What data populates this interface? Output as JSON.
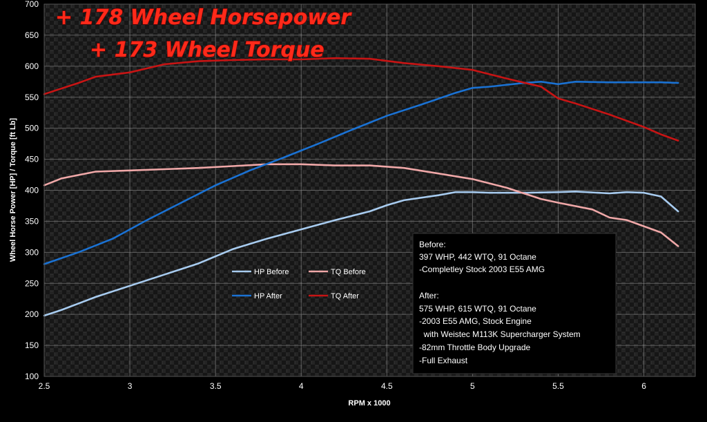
{
  "chart_data": {
    "type": "line",
    "title": "",
    "headline": [
      "+ 178 Wheel Horsepower",
      "+ 173 Wheel Torque"
    ],
    "xlabel": "RPM x 1000",
    "ylabel": "Wheel Horse Power [HP] / Torque [ft Lb]",
    "xlim": [
      2.5,
      6.3
    ],
    "ylim": [
      100,
      700
    ],
    "x_ticks": [
      "2.5",
      "3",
      "3.5",
      "4",
      "4.5",
      "5",
      "5.5",
      "6"
    ],
    "y_ticks": [
      "100",
      "150",
      "200",
      "250",
      "300",
      "350",
      "400",
      "450",
      "500",
      "550",
      "600",
      "650",
      "700"
    ],
    "grid": true,
    "legend_position": "center-left",
    "series": [
      {
        "name": "HP Before",
        "color": "#a8ccf0",
        "points": [
          [
            2.5,
            198
          ],
          [
            2.6,
            207
          ],
          [
            2.8,
            228
          ],
          [
            3.0,
            246
          ],
          [
            3.2,
            264
          ],
          [
            3.4,
            282
          ],
          [
            3.6,
            305
          ],
          [
            3.8,
            322
          ],
          [
            4.0,
            337
          ],
          [
            4.2,
            352
          ],
          [
            4.4,
            366
          ],
          [
            4.5,
            376
          ],
          [
            4.6,
            384
          ],
          [
            4.8,
            392
          ],
          [
            4.9,
            397
          ],
          [
            5.0,
            397
          ],
          [
            5.1,
            396
          ],
          [
            5.3,
            396
          ],
          [
            5.5,
            397
          ],
          [
            5.6,
            398
          ],
          [
            5.8,
            395
          ],
          [
            5.9,
            397
          ],
          [
            6.0,
            396
          ],
          [
            6.1,
            390
          ],
          [
            6.2,
            366
          ]
        ]
      },
      {
        "name": "TQ Before",
        "color": "#f0a8a8",
        "points": [
          [
            2.5,
            408
          ],
          [
            2.6,
            419
          ],
          [
            2.8,
            430
          ],
          [
            3.0,
            432
          ],
          [
            3.2,
            434
          ],
          [
            3.4,
            436
          ],
          [
            3.6,
            439
          ],
          [
            3.8,
            442
          ],
          [
            4.0,
            442
          ],
          [
            4.2,
            440
          ],
          [
            4.4,
            440
          ],
          [
            4.6,
            436
          ],
          [
            4.8,
            427
          ],
          [
            5.0,
            418
          ],
          [
            5.2,
            404
          ],
          [
            5.4,
            386
          ],
          [
            5.5,
            380
          ],
          [
            5.7,
            369
          ],
          [
            5.8,
            356
          ],
          [
            5.9,
            352
          ],
          [
            6.0,
            342
          ],
          [
            6.1,
            332
          ],
          [
            6.2,
            310
          ]
        ]
      },
      {
        "name": "HP After",
        "color": "#1a72d4",
        "points": [
          [
            2.5,
            281
          ],
          [
            2.7,
            300
          ],
          [
            2.9,
            322
          ],
          [
            3.1,
            352
          ],
          [
            3.3,
            380
          ],
          [
            3.5,
            408
          ],
          [
            3.7,
            432
          ],
          [
            3.9,
            453
          ],
          [
            4.1,
            475
          ],
          [
            4.3,
            498
          ],
          [
            4.5,
            520
          ],
          [
            4.7,
            538
          ],
          [
            4.9,
            557
          ],
          [
            5.0,
            565
          ],
          [
            5.1,
            567
          ],
          [
            5.3,
            573
          ],
          [
            5.4,
            575
          ],
          [
            5.5,
            571
          ],
          [
            5.6,
            575
          ],
          [
            5.8,
            574
          ],
          [
            6.0,
            574
          ],
          [
            6.1,
            574
          ],
          [
            6.2,
            573
          ]
        ]
      },
      {
        "name": "TQ After",
        "color": "#c81414",
        "points": [
          [
            2.5,
            555
          ],
          [
            2.7,
            573
          ],
          [
            2.8,
            583
          ],
          [
            3.0,
            590
          ],
          [
            3.2,
            603
          ],
          [
            3.4,
            608
          ],
          [
            3.6,
            610
          ],
          [
            3.8,
            611
          ],
          [
            4.0,
            611
          ],
          [
            4.2,
            613
          ],
          [
            4.4,
            612
          ],
          [
            4.6,
            605
          ],
          [
            4.8,
            600
          ],
          [
            5.0,
            594
          ],
          [
            5.2,
            580
          ],
          [
            5.4,
            567
          ],
          [
            5.5,
            548
          ],
          [
            5.6,
            540
          ],
          [
            5.8,
            522
          ],
          [
            6.0,
            502
          ],
          [
            6.1,
            490
          ],
          [
            6.2,
            480
          ]
        ]
      }
    ]
  },
  "notes": {
    "before_title": "Before:",
    "before_lines": [
      "397 WHP, 442 WTQ, 91 Octane",
      "-Completley Stock 2003 E55 AMG"
    ],
    "after_title": "After:",
    "after_lines": [
      "575 WHP, 615 WTQ, 91 Octane",
      "-2003 E55 AMG, Stock Engine",
      "  with Weistec M113K Supercharger System",
      "-82mm Throttle Body Upgrade",
      "-Full Exhaust"
    ]
  }
}
